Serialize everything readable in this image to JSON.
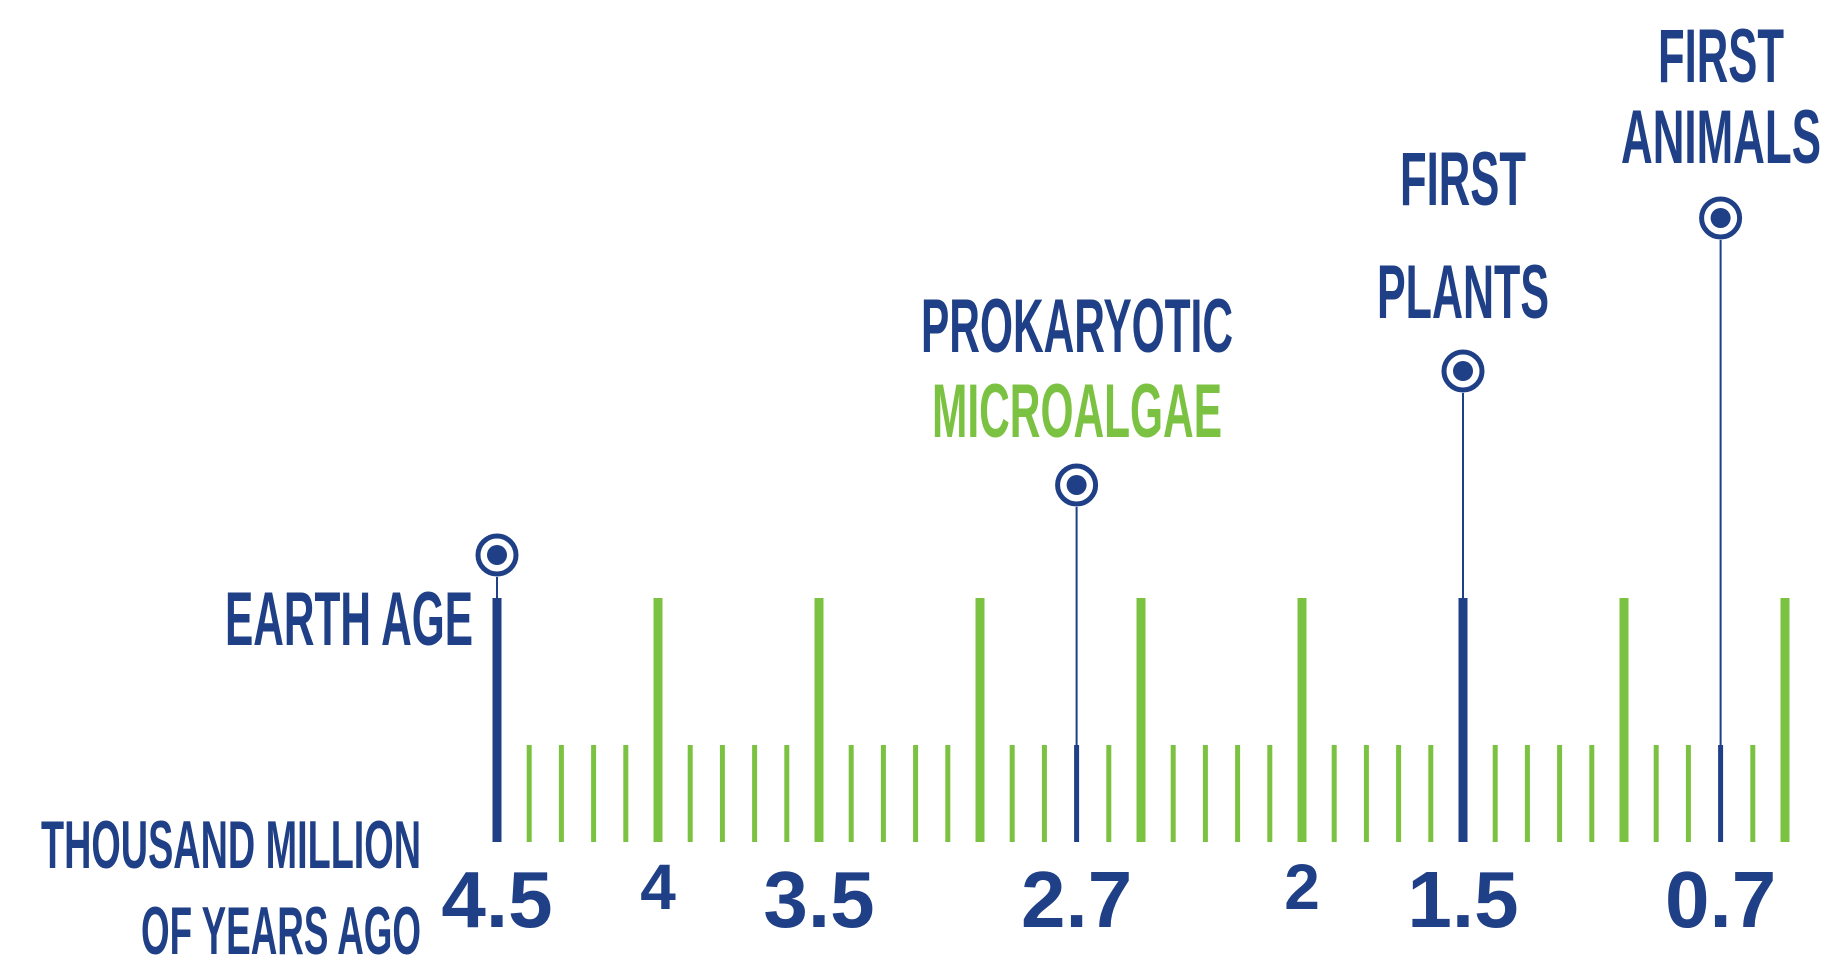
{
  "colors": {
    "navy": "#1f3f86",
    "green": "#7cc242"
  },
  "axis": {
    "label_line1": "THOUSAND MILLION",
    "label_line2": "OF YEARS AGO",
    "start": 4.5,
    "end": 0.5,
    "major_step": 0.5,
    "minor_step": 0.1,
    "ticks": [
      {
        "value": 4.5,
        "label": "4.5"
      },
      {
        "value": 4.0,
        "label": "4"
      },
      {
        "value": 3.5,
        "label": "3.5"
      },
      {
        "value": 2.7,
        "label": "2.7"
      },
      {
        "value": 2.0,
        "label": "2"
      },
      {
        "value": 1.5,
        "label": "1.5"
      },
      {
        "value": 0.7,
        "label": "0.7"
      }
    ]
  },
  "events": [
    {
      "id": "earth-age",
      "value": 4.5,
      "lines": [
        "EARTH AGE"
      ]
    },
    {
      "id": "prokaryotic-microalgae",
      "value": 2.7,
      "lines": [
        "PROKARYOTIC",
        "MICROALGAE"
      ]
    },
    {
      "id": "first-plants",
      "value": 1.5,
      "lines": [
        "FIRST",
        "PLANTS"
      ]
    },
    {
      "id": "first-animals",
      "value": 0.7,
      "lines": [
        "FIRST",
        "ANIMALS"
      ]
    }
  ]
}
